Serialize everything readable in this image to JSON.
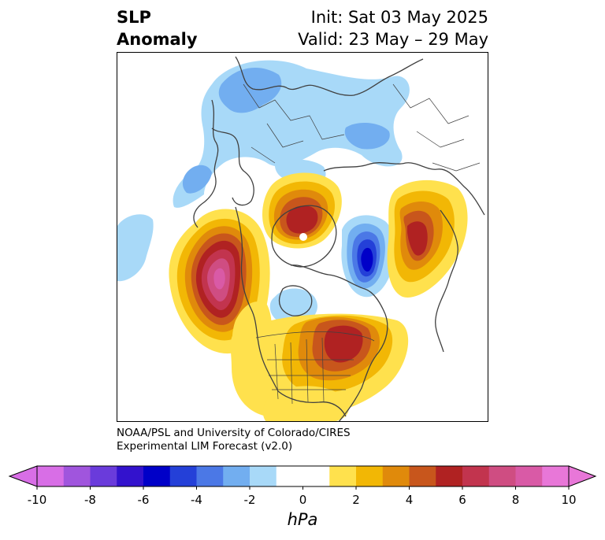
{
  "title": {
    "left_line1": "SLP",
    "left_line2": "Anomaly",
    "right_line1": "Init: Sat 03 May 2025",
    "right_line2": "Valid: 23 May – 29 May"
  },
  "credit": {
    "line1": "NOAA/PSL and University of Colorado/CIRES",
    "line2": "Experimental LIM Forecast (v2.0)"
  },
  "colorbar": {
    "unit": "hPa",
    "tick_labels": [
      "-10",
      "-8",
      "-6",
      "-4",
      "-2",
      "0",
      "2",
      "4",
      "6",
      "8",
      "10"
    ],
    "extend_low_color": "#d86ee6",
    "extend_high_color": "#e877d8",
    "colors": [
      "#d86ee6",
      "#a055dd",
      "#6a3bdb",
      "#3312cd",
      "#0000c8",
      "#2440d8",
      "#4b78e6",
      "#72aef0",
      "#a8d9f8",
      "#ffffff",
      "#ffffff",
      "#ffe14d",
      "#f2b705",
      "#e08a0b",
      "#c8561c",
      "#b02222",
      "#c2344e",
      "#cf4d82",
      "#d95aa6",
      "#e877d8"
    ]
  },
  "map": {
    "projection": "north-polar-stereographic",
    "coastline_color": "#404040",
    "highlight_color": "#ffffff"
  }
}
